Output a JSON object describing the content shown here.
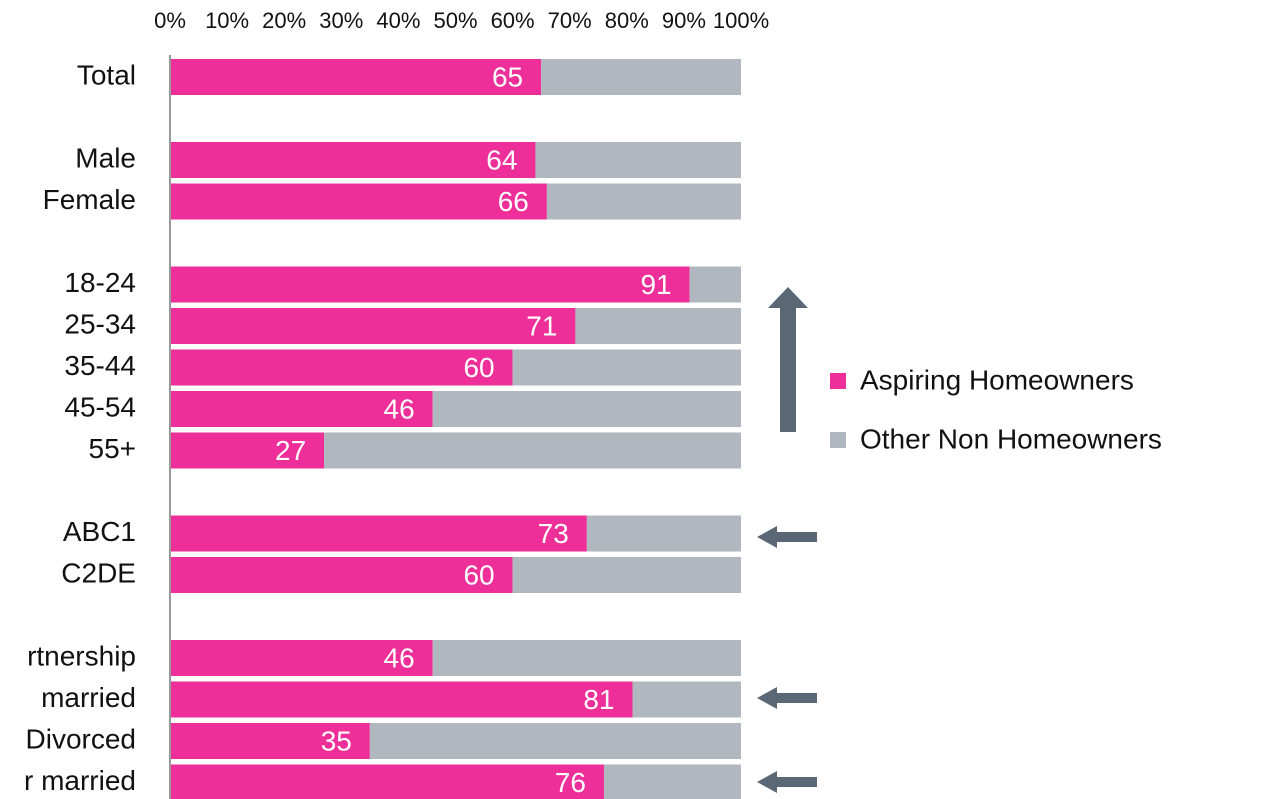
{
  "chart_data": {
    "type": "stacked-bar",
    "orientation": "horizontal",
    "categories": [
      "Total",
      null,
      "Male",
      "Female",
      null,
      "18-24",
      "25-34",
      "35-44",
      "45-54",
      "55+",
      null,
      "ABC1",
      "C2DE",
      null,
      "rtnership",
      "married",
      "Divorced",
      "r married"
    ],
    "series": [
      {
        "name": "Aspiring Homeowners",
        "color": "#ee2f9a",
        "values": [
          65,
          null,
          64,
          66,
          null,
          91,
          71,
          60,
          46,
          27,
          null,
          73,
          60,
          null,
          46,
          81,
          35,
          76
        ]
      },
      {
        "name": "Other Non Homeowners",
        "color": "#b1b7be",
        "values": [
          35,
          null,
          36,
          34,
          null,
          9,
          29,
          40,
          54,
          73,
          null,
          27,
          40,
          null,
          54,
          19,
          65,
          24
        ]
      }
    ],
    "xlim": [
      0,
      100
    ],
    "xticks": [
      {
        "value": 0,
        "label": "0%"
      },
      {
        "value": 10,
        "label": "10%"
      },
      {
        "value": 20,
        "label": "20%"
      },
      {
        "value": 30,
        "label": "30%"
      },
      {
        "value": 40,
        "label": "40%"
      },
      {
        "value": 50,
        "label": "50%"
      },
      {
        "value": 60,
        "label": "60%"
      },
      {
        "value": 70,
        "label": "70%"
      },
      {
        "value": 80,
        "label": "80%"
      },
      {
        "value": 90,
        "label": "90%"
      },
      {
        "value": 100,
        "label": "100%"
      }
    ],
    "legend": "right",
    "grid": false
  }
}
